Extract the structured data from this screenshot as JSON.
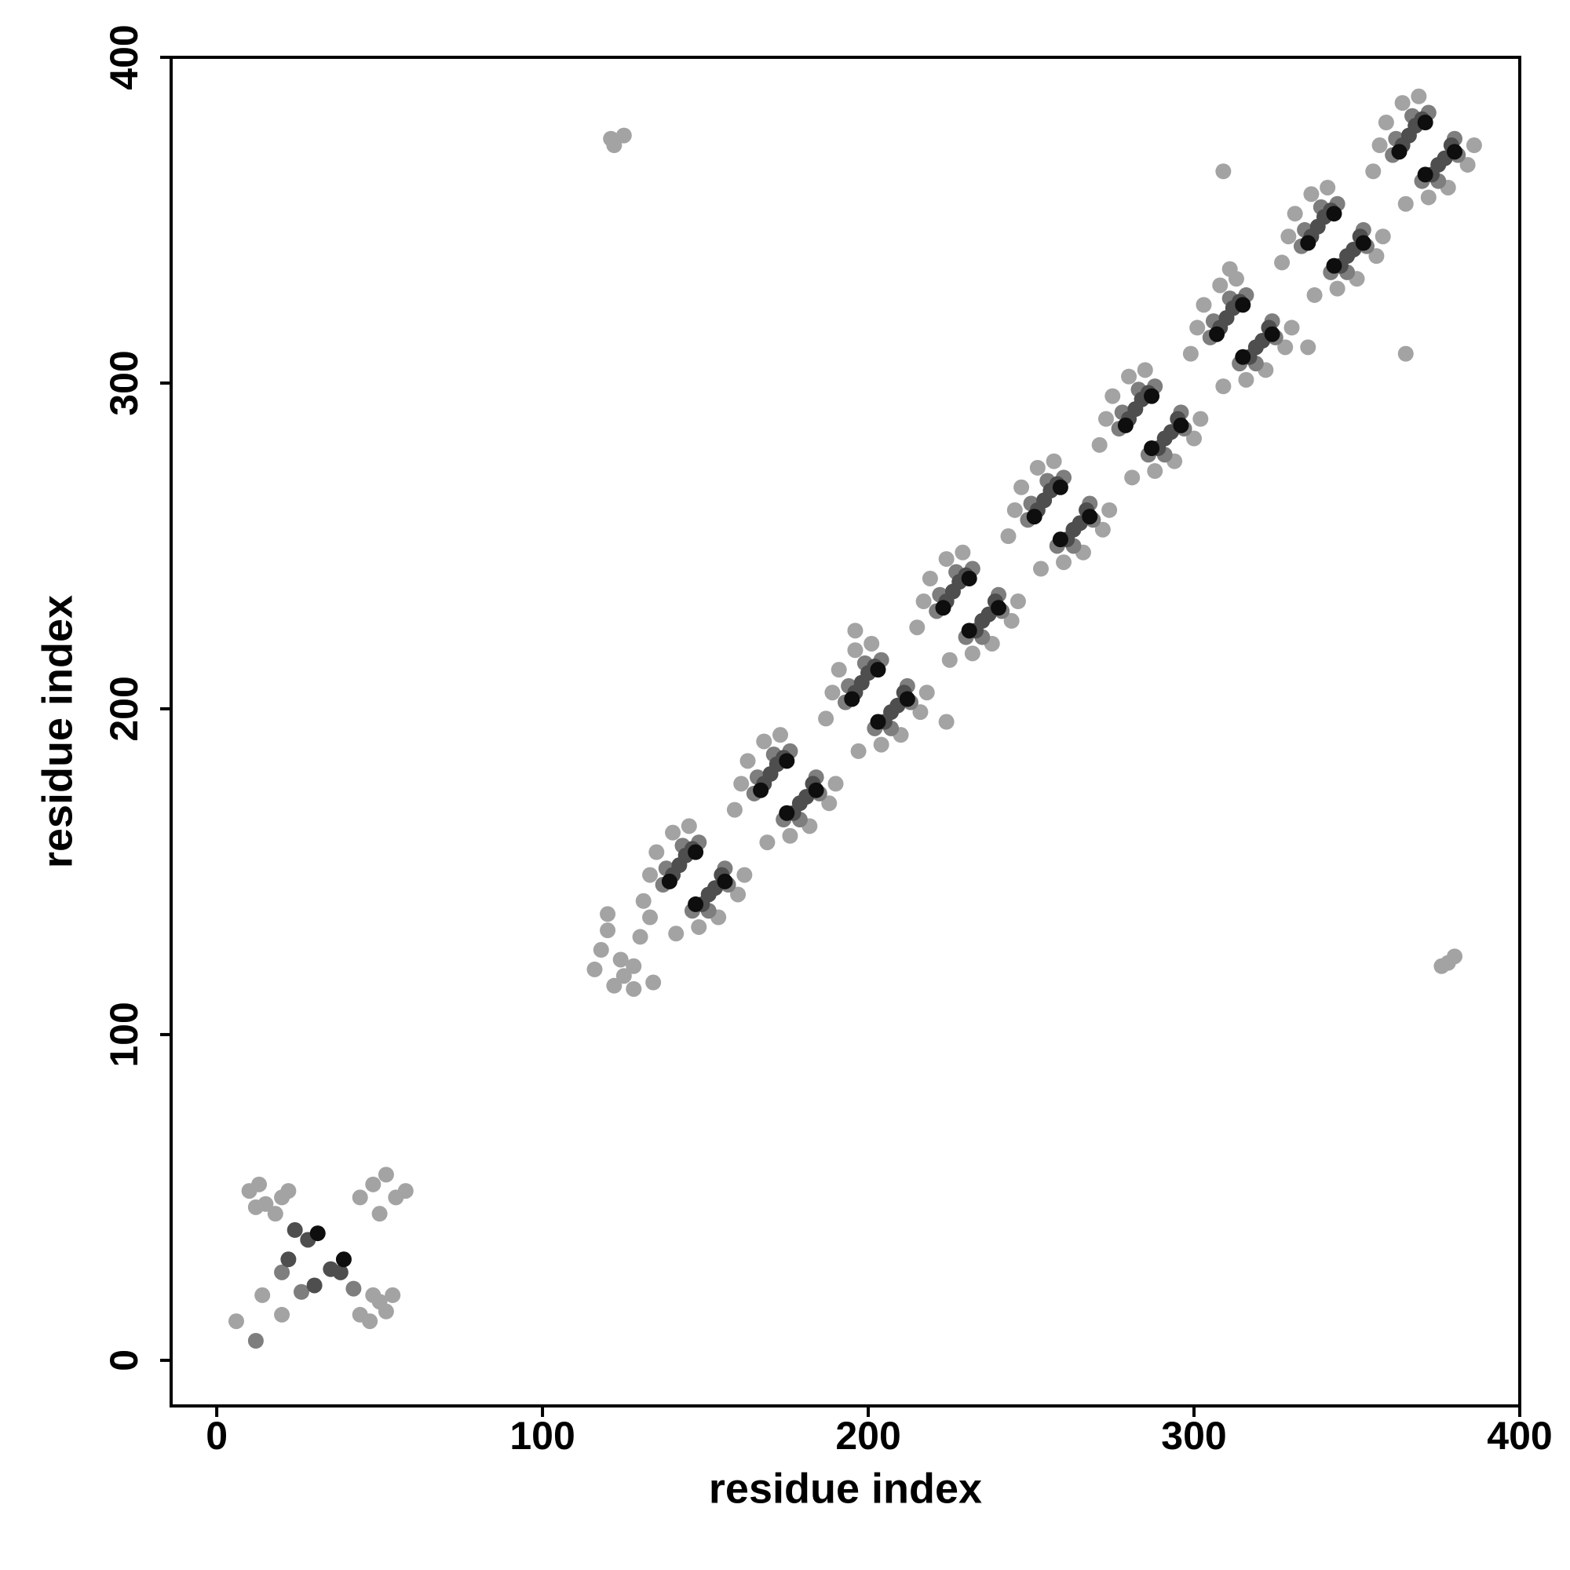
{
  "chart_data": {
    "type": "scatter",
    "x_label": "residue index",
    "y_label": "residue index",
    "xlim": [
      -14,
      400
    ],
    "ylim": [
      -14,
      400
    ],
    "xticks": [
      0,
      100,
      200,
      300,
      400
    ],
    "yticks": [
      0,
      100,
      200,
      300,
      400
    ],
    "grid": false,
    "series": [
      {
        "color": "#a3a3a3",
        "x": [
          133,
          135,
          140,
          145,
          148,
          154,
          160,
          162,
          131,
          141,
          161,
          163,
          168,
          173,
          176,
          182,
          188,
          190,
          159,
          169,
          189,
          191,
          196,
          201,
          204,
          210,
          216,
          218,
          187,
          197,
          217,
          219,
          224,
          229,
          232,
          238,
          244,
          246,
          215,
          225,
          245,
          247,
          252,
          257,
          260,
          266,
          272,
          274,
          243,
          253,
          273,
          275,
          280,
          285,
          288,
          294,
          300,
          302,
          271,
          281,
          301,
          303,
          308,
          313,
          316,
          322,
          328,
          330,
          299,
          309,
          329,
          331,
          336,
          341,
          344,
          350,
          356,
          358,
          327,
          337,
          357,
          359,
          364,
          369,
          372,
          378,
          384,
          386,
          355,
          365,
          116,
          118,
          120,
          122,
          125,
          128,
          130,
          133,
          128,
          134,
          120,
          124,
          121,
          125,
          122,
          378,
          380,
          376,
          309,
          365,
          311,
          335,
          196,
          224,
          10,
          13,
          15,
          18,
          20,
          22,
          12,
          44,
          47,
          50,
          52,
          54,
          48,
          44,
          48,
          52,
          55,
          58,
          50,
          6,
          14,
          20
        ],
        "y": [
          149,
          156,
          162,
          164,
          133,
          136,
          143,
          149,
          141,
          131,
          177,
          184,
          190,
          192,
          161,
          164,
          171,
          177,
          169,
          159,
          205,
          212,
          218,
          220,
          189,
          192,
          199,
          205,
          197,
          187,
          233,
          240,
          246,
          248,
          217,
          220,
          227,
          233,
          225,
          215,
          261,
          268,
          274,
          276,
          245,
          248,
          255,
          261,
          253,
          243,
          289,
          296,
          302,
          304,
          273,
          276,
          283,
          289,
          281,
          271,
          317,
          324,
          330,
          332,
          301,
          304,
          311,
          317,
          309,
          299,
          345,
          352,
          358,
          360,
          329,
          332,
          339,
          345,
          337,
          327,
          373,
          380,
          386,
          388,
          357,
          360,
          367,
          373,
          365,
          355,
          120,
          126,
          132,
          115,
          118,
          121,
          130,
          136,
          114,
          116,
          137,
          123,
          375,
          376,
          373,
          122,
          124,
          121,
          365,
          309,
          335,
          311,
          224,
          196,
          52,
          54,
          48,
          45,
          50,
          52,
          47,
          14,
          12,
          18,
          15,
          20,
          20,
          50,
          54,
          57,
          50,
          52,
          45,
          12,
          20,
          14
        ]
      },
      {
        "color": "#7e7e7e",
        "x": [
          137,
          138,
          143,
          148,
          146,
          151,
          157,
          156,
          165,
          166,
          171,
          176,
          174,
          179,
          185,
          184,
          193,
          194,
          199,
          204,
          202,
          207,
          213,
          212,
          221,
          222,
          227,
          232,
          230,
          235,
          241,
          240,
          249,
          250,
          255,
          260,
          258,
          263,
          269,
          268,
          277,
          278,
          283,
          288,
          286,
          291,
          297,
          296,
          305,
          306,
          311,
          316,
          314,
          319,
          325,
          324,
          333,
          334,
          339,
          344,
          342,
          347,
          353,
          352,
          361,
          362,
          367,
          372,
          370,
          375,
          381,
          380,
          26,
          20,
          42,
          12
        ],
        "y": [
          146,
          151,
          158,
          159,
          138,
          138,
          146,
          151,
          174,
          179,
          186,
          187,
          166,
          166,
          174,
          179,
          202,
          207,
          214,
          215,
          194,
          194,
          202,
          207,
          230,
          235,
          242,
          243,
          222,
          222,
          230,
          235,
          258,
          263,
          270,
          271,
          250,
          250,
          258,
          263,
          286,
          291,
          298,
          299,
          278,
          278,
          286,
          291,
          314,
          319,
          326,
          327,
          306,
          306,
          314,
          319,
          342,
          347,
          354,
          355,
          334,
          334,
          342,
          347,
          370,
          375,
          382,
          383,
          362,
          362,
          370,
          375,
          21,
          27,
          22,
          6
        ]
      },
      {
        "color": "#4e4e4e",
        "x": [
          140,
          142,
          144,
          146,
          149,
          151,
          153,
          155,
          168,
          170,
          172,
          174,
          177,
          179,
          181,
          183,
          196,
          198,
          200,
          202,
          205,
          207,
          209,
          211,
          224,
          226,
          228,
          230,
          233,
          235,
          237,
          239,
          252,
          254,
          256,
          258,
          261,
          263,
          265,
          267,
          280,
          282,
          284,
          286,
          289,
          291,
          293,
          295,
          308,
          310,
          312,
          314,
          317,
          319,
          321,
          323,
          336,
          338,
          340,
          342,
          345,
          347,
          349,
          351,
          364,
          366,
          368,
          370,
          373,
          375,
          377,
          379,
          24,
          28,
          22,
          35,
          30,
          38
        ],
        "y": [
          149,
          152,
          155,
          157,
          140,
          143,
          145,
          149,
          177,
          180,
          183,
          185,
          168,
          171,
          173,
          177,
          205,
          208,
          211,
          213,
          196,
          199,
          201,
          205,
          233,
          236,
          239,
          241,
          224,
          227,
          229,
          233,
          261,
          264,
          267,
          269,
          252,
          255,
          257,
          261,
          289,
          292,
          295,
          297,
          280,
          283,
          285,
          289,
          317,
          320,
          323,
          325,
          308,
          311,
          313,
          317,
          345,
          348,
          351,
          353,
          336,
          339,
          341,
          345,
          373,
          376,
          379,
          381,
          364,
          367,
          369,
          373,
          40,
          37,
          31,
          28,
          23,
          27
        ]
      },
      {
        "color": "#0e0e0e",
        "x": [
          139,
          147,
          156,
          147,
          167,
          175,
          184,
          175,
          195,
          203,
          212,
          203,
          223,
          231,
          240,
          231,
          251,
          259,
          268,
          259,
          279,
          287,
          296,
          287,
          307,
          315,
          324,
          315,
          335,
          343,
          352,
          343,
          363,
          371,
          380,
          371,
          31,
          39
        ],
        "y": [
          147,
          156,
          147,
          140,
          175,
          184,
          175,
          168,
          203,
          212,
          203,
          196,
          231,
          240,
          231,
          224,
          259,
          268,
          259,
          252,
          287,
          296,
          287,
          280,
          315,
          324,
          315,
          308,
          343,
          352,
          343,
          336,
          371,
          380,
          371,
          364,
          39,
          31
        ]
      }
    ]
  }
}
